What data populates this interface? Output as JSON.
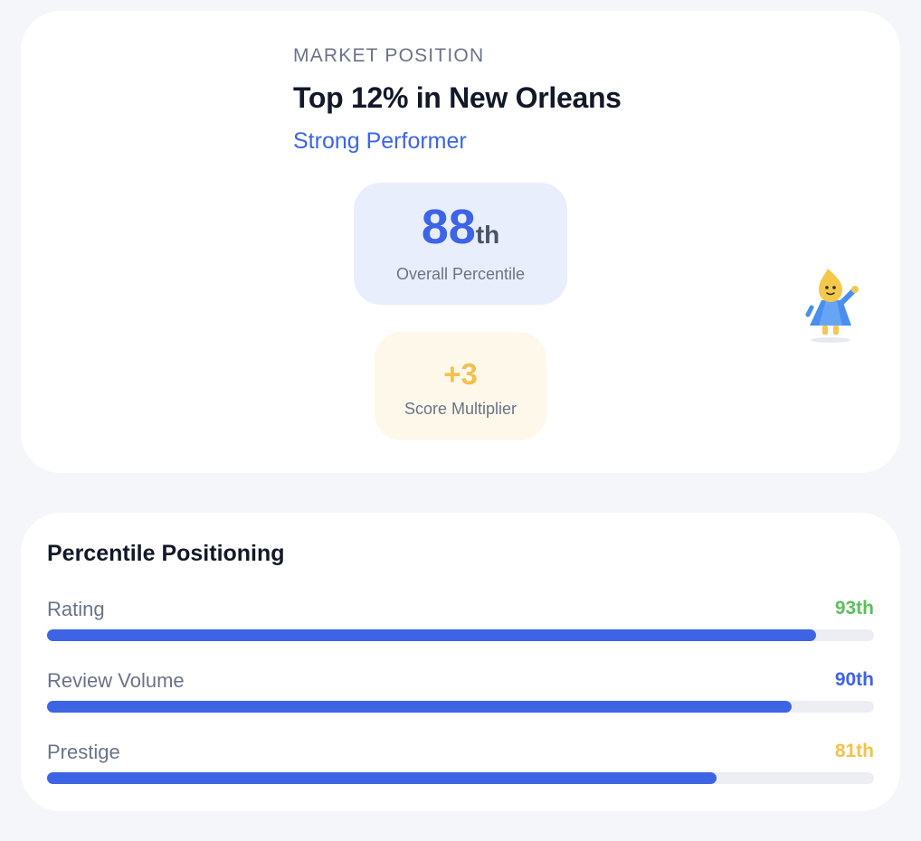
{
  "market_position": {
    "eyebrow": "MARKET POSITION",
    "headline": "Top 12% in New Orleans",
    "tier": "Strong Performer",
    "overall_percentile": {
      "value": "88",
      "suffix": "th",
      "caption": "Overall Percentile"
    },
    "score_multiplier": {
      "value": "+3",
      "caption": "Score Multiplier"
    },
    "mascot_icon": "mascot-waving-icon"
  },
  "percentile_positioning": {
    "title": "Percentile Positioning",
    "metrics": [
      {
        "label": "Rating",
        "value": "93th",
        "fill_fraction": 0.93,
        "value_color": "#5cc05c"
      },
      {
        "label": "Review Volume",
        "value": "90th",
        "fill_fraction": 0.9,
        "value_color": "#3e64e6"
      },
      {
        "label": "Prestige",
        "value": "81th",
        "fill_fraction": 0.81,
        "value_color": "#f2c14e"
      }
    ]
  },
  "colors": {
    "accent_blue": "#3e64e6",
    "accent_green": "#5cc05c",
    "accent_gold": "#f2c14e"
  }
}
